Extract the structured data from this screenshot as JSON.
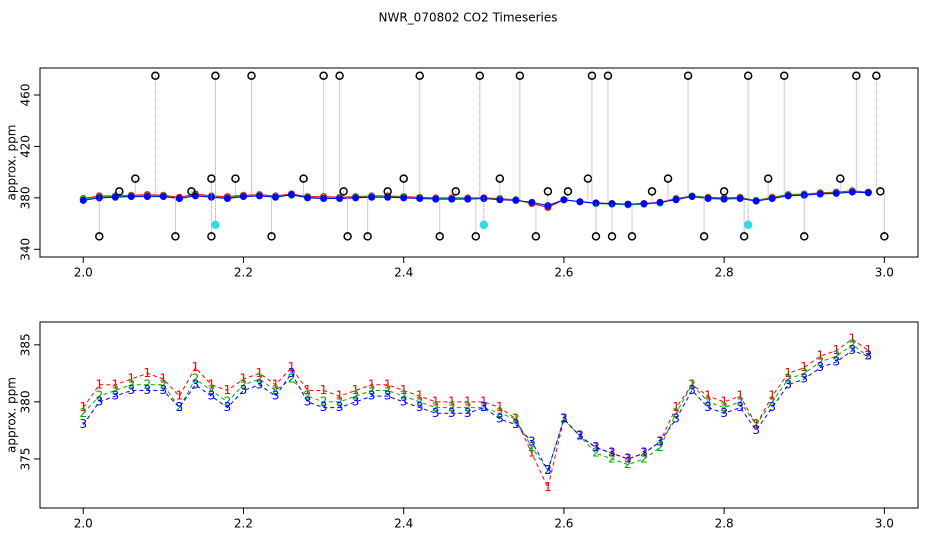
{
  "chart_data": [
    {
      "type": "scatter",
      "title": "NWR_070802  CO2 Timeseries",
      "y_label": "approx. ppm",
      "xlim": [
        1.946,
        3.042
      ],
      "ylim": [
        334,
        481
      ],
      "xticks": [
        {
          "value": 2,
          "label": "2.0"
        },
        2.2,
        2.4,
        2.6,
        2.8,
        {
          "value": 3,
          "label": "3.0"
        }
      ],
      "yticks": [
        340,
        380,
        420,
        460
      ],
      "x": [
        2.0,
        2.02,
        2.04,
        2.06,
        2.08,
        2.1,
        2.12,
        2.14,
        2.16,
        2.18,
        2.2,
        2.22,
        2.24,
        2.26,
        2.28,
        2.3,
        2.32,
        2.34,
        2.36,
        2.38,
        2.4,
        2.42,
        2.44,
        2.46,
        2.48,
        2.5,
        2.52,
        2.54,
        2.56,
        2.58,
        2.6,
        2.62,
        2.64,
        2.66,
        2.68,
        2.7,
        2.72,
        2.74,
        2.76,
        2.78,
        2.8,
        2.82,
        2.84,
        2.86,
        2.88,
        2.9,
        2.92,
        2.94,
        2.96,
        2.98
      ],
      "series": [
        {
          "color": "#ff0000",
          "values": [
            379.5,
            381.5,
            381.5,
            382,
            382.5,
            382,
            380.5,
            383,
            381.5,
            381,
            382,
            382.5,
            381.5,
            383,
            381,
            381,
            380.5,
            381,
            381.5,
            381.5,
            381,
            380.5,
            380,
            380,
            380,
            380,
            379.5,
            378.5,
            375.5,
            372.5,
            378.5,
            377,
            376,
            375.5,
            375,
            375.5,
            376.5,
            379.5,
            381.5,
            380.5,
            380,
            380.5,
            378,
            380.5,
            382.5,
            383,
            384,
            384.5,
            385.5,
            384.5
          ]
        },
        {
          "color": "#00cc00",
          "values": [
            379,
            380.5,
            381,
            381.5,
            381.5,
            381.5,
            379.5,
            382,
            381,
            380,
            381.5,
            382,
            381,
            382,
            380.5,
            380,
            380,
            380.5,
            381,
            381,
            380.5,
            380,
            379.5,
            379.5,
            379.5,
            379.5,
            379,
            378.5,
            376,
            374,
            378.5,
            377,
            375.5,
            375,
            374.5,
            375,
            376,
            379,
            381.5,
            380,
            379.5,
            380,
            378,
            380,
            382,
            382.5,
            383.5,
            384,
            385,
            384
          ]
        },
        {
          "color": "#0000ff",
          "values": [
            378,
            380,
            380.5,
            381,
            381,
            381,
            379.5,
            381.5,
            380.5,
            379.5,
            381,
            381.5,
            380.5,
            382.5,
            380,
            379.5,
            379.5,
            380,
            380.5,
            380.5,
            380,
            379.5,
            379,
            379,
            379,
            379.5,
            378.5,
            378,
            376.5,
            374,
            378.5,
            377,
            376,
            375.5,
            375,
            375.5,
            376.5,
            378.5,
            381,
            379.5,
            379,
            379.5,
            377.5,
            379.5,
            381.5,
            382,
            383,
            383.5,
            384.5,
            384
          ]
        },
        {
          "color": "#000000",
          "x": [
            2.02,
            2.045,
            2.065,
            2.09,
            2.115,
            2.135,
            2.16,
            2.16,
            2.165,
            2.19,
            2.21,
            2.235,
            2.275,
            2.3,
            2.32,
            2.325,
            2.33,
            2.355,
            2.38,
            2.4,
            2.42,
            2.445,
            2.465,
            2.49,
            2.495,
            2.52,
            2.545,
            2.565,
            2.58,
            2.605,
            2.63,
            2.635,
            2.64,
            2.655,
            2.66,
            2.685,
            2.71,
            2.73,
            2.755,
            2.775,
            2.8,
            2.825,
            2.83,
            2.855,
            2.875,
            2.9,
            2.945,
            2.965,
            2.99,
            2.995,
            3.0
          ],
          "values": [
            350,
            385,
            395,
            475,
            350,
            385,
            350,
            395,
            475,
            395,
            475,
            350,
            395,
            475,
            475,
            385,
            350,
            350,
            385,
            395,
            475,
            350,
            385,
            350,
            475,
            395,
            475,
            350,
            385,
            385,
            395,
            475,
            350,
            475,
            350,
            350,
            385,
            395,
            475,
            350,
            385,
            350,
            475,
            395,
            475,
            350,
            395,
            475,
            475,
            385,
            350
          ]
        },
        {
          "color": "#33dddd",
          "x": [
            2.165,
            2.5,
            2.83
          ],
          "values": [
            359,
            359,
            359
          ]
        }
      ]
    },
    {
      "type": "text-scatter",
      "y_label": "approx. ppm",
      "xlim": [
        1.946,
        3.042
      ],
      "ylim": [
        370.7,
        387
      ],
      "xticks": [
        {
          "value": 2,
          "label": "2.0"
        },
        2.2,
        2.4,
        2.6,
        2.8,
        {
          "value": 3,
          "label": "3.0"
        }
      ],
      "yticks": [
        375,
        380,
        385
      ],
      "x": [
        2.0,
        2.02,
        2.04,
        2.06,
        2.08,
        2.1,
        2.12,
        2.14,
        2.16,
        2.18,
        2.2,
        2.22,
        2.24,
        2.26,
        2.28,
        2.3,
        2.32,
        2.34,
        2.36,
        2.38,
        2.4,
        2.42,
        2.44,
        2.46,
        2.48,
        2.5,
        2.52,
        2.54,
        2.56,
        2.58,
        2.6,
        2.62,
        2.64,
        2.66,
        2.68,
        2.7,
        2.72,
        2.74,
        2.76,
        2.78,
        2.8,
        2.82,
        2.84,
        2.86,
        2.88,
        2.9,
        2.92,
        2.94,
        2.96,
        2.98
      ],
      "series": [
        {
          "name": "1",
          "color": "#ff0000",
          "values": [
            379.5,
            381.5,
            381.5,
            382,
            382.5,
            382,
            380.5,
            383,
            381.5,
            381,
            382,
            382.5,
            381.5,
            383,
            381,
            381,
            380.5,
            381,
            381.5,
            381.5,
            381,
            380.5,
            380,
            380,
            380,
            380,
            379.5,
            378.5,
            375.5,
            372.5,
            378.5,
            377,
            376,
            375.5,
            375,
            375.5,
            376.5,
            379.5,
            381.5,
            380.5,
            380,
            380.5,
            378,
            380.5,
            382.5,
            383,
            384,
            384.5,
            385.5,
            384.5
          ]
        },
        {
          "name": "2",
          "color": "#00aa00",
          "values": [
            379,
            380.5,
            381,
            381.5,
            381.5,
            381.5,
            379.5,
            382,
            381,
            380,
            381.5,
            382,
            381,
            382,
            380.5,
            380,
            380,
            380.5,
            381,
            381,
            380.5,
            380,
            379.5,
            379.5,
            379.5,
            379.5,
            379,
            378.5,
            376,
            374,
            378.5,
            377,
            375.5,
            375,
            374.5,
            375,
            376,
            379,
            381.5,
            380,
            379.5,
            380,
            378,
            380,
            382,
            382.5,
            383.5,
            384,
            385,
            384
          ]
        },
        {
          "name": "3",
          "color": "#0000ff",
          "values": [
            378,
            380,
            380.5,
            381,
            381,
            381,
            379.5,
            381.5,
            380.5,
            379.5,
            381,
            381.5,
            380.5,
            382.5,
            380,
            379.5,
            379.5,
            380,
            380.5,
            380.5,
            380,
            379.5,
            379,
            379,
            379,
            379.5,
            378.5,
            378,
            376.5,
            374,
            378.5,
            377,
            376,
            375.5,
            375,
            375.5,
            376.5,
            378.5,
            381,
            379.5,
            379,
            379.5,
            377.5,
            379.5,
            381.5,
            382,
            383,
            383.5,
            384.5,
            384
          ]
        }
      ]
    }
  ]
}
